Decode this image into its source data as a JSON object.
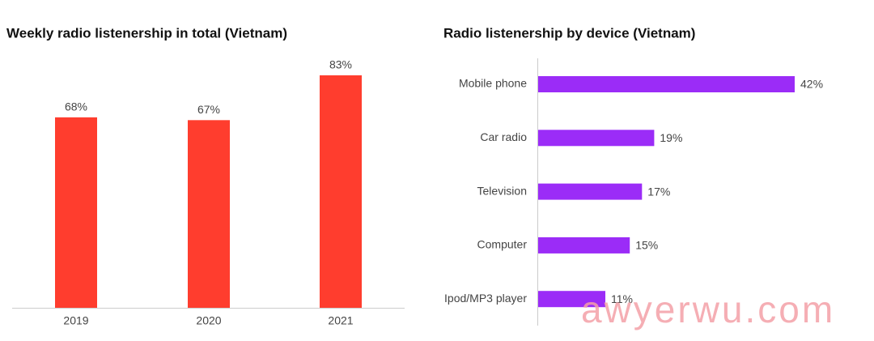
{
  "chart_data": [
    {
      "type": "bar",
      "title": "Weekly radio listenership in total (Vietnam)",
      "categories": [
        "2019",
        "2020",
        "2021"
      ],
      "values": [
        68,
        67,
        83
      ],
      "value_labels": [
        "68%",
        "67%",
        "83%"
      ],
      "color": "#ff3d2e"
    },
    {
      "type": "hbar",
      "title": "Radio listenership by device (Vietnam)",
      "categories": [
        "Mobile phone",
        "Car radio",
        "Television",
        "Computer",
        "Ipod/MP3 player"
      ],
      "values": [
        42,
        19,
        17,
        15,
        11
      ],
      "value_labels": [
        "42%",
        "19%",
        "17%",
        "15%",
        "11%"
      ],
      "color": "#9b2cf7"
    }
  ],
  "watermark": "awyerwu.com"
}
